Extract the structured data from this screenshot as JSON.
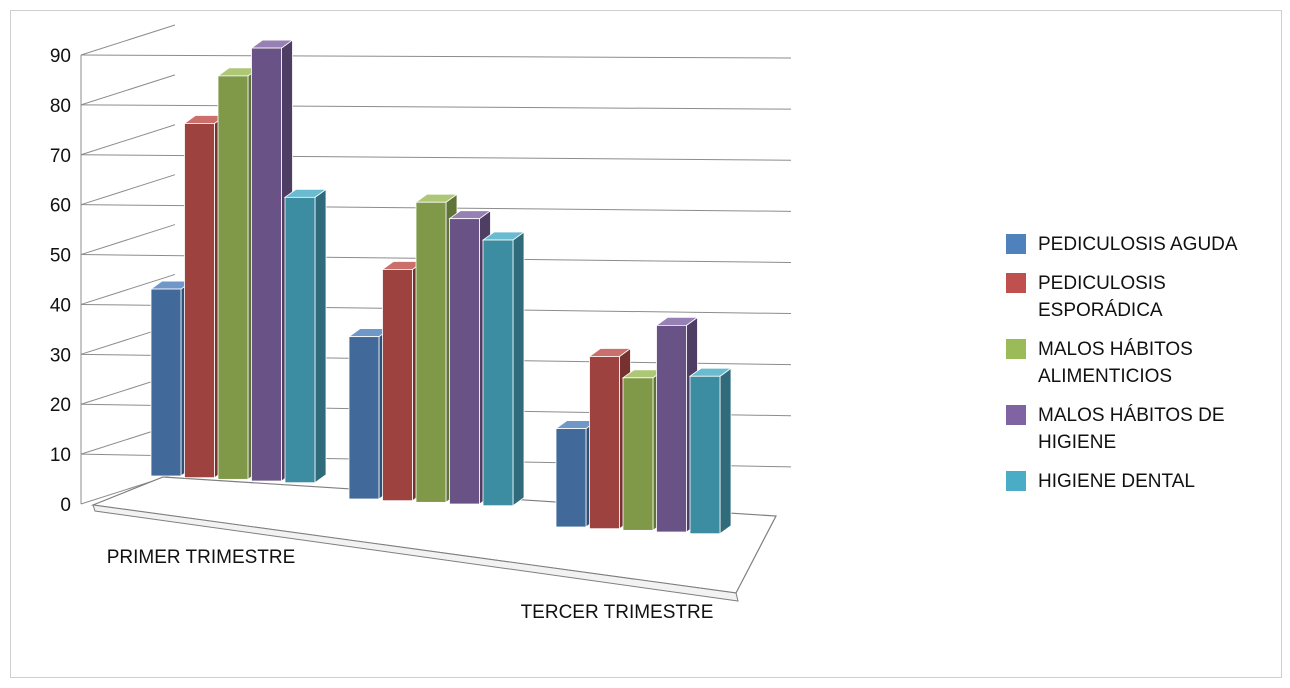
{
  "chart_data": {
    "type": "bar",
    "title": "",
    "xlabel": "",
    "ylabel": "",
    "ylim": [
      0,
      90
    ],
    "yticks": [
      0,
      10,
      20,
      30,
      40,
      50,
      60,
      70,
      80,
      90
    ],
    "grid": true,
    "legend_position": "right",
    "categories": [
      "PRIMER TRIMESTRE",
      "",
      "TERCER TRIMESTRE"
    ],
    "series": [
      {
        "name": "PEDICULOSIS AGUDA",
        "values": [
          38,
          33,
          20
        ],
        "color": "#4f81bd"
      },
      {
        "name": "PEDICULOSIS ESPORÁDICA",
        "values": [
          72,
          47,
          35
        ],
        "color": "#c0504d"
      },
      {
        "name": "MALOS HÁBITOS ALIMENTICIOS",
        "values": [
          82,
          61,
          31
        ],
        "color": "#9bbb59"
      },
      {
        "name": "MALOS HÁBITOS DE HIGIENE",
        "values": [
          88,
          58,
          42
        ],
        "color": "#8064a2"
      },
      {
        "name": "HIGIENE DENTAL",
        "values": [
          58,
          54,
          32
        ],
        "color": "#4bacc6"
      }
    ]
  }
}
